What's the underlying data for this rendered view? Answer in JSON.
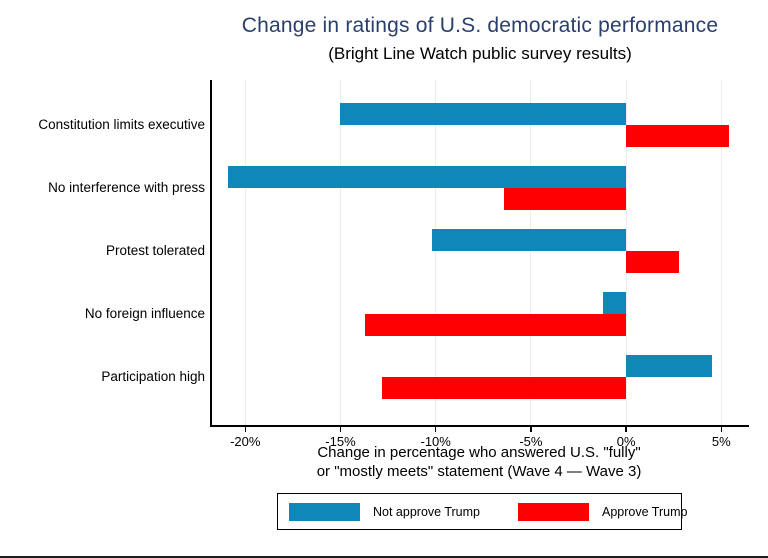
{
  "figure": {
    "title": "Change in ratings of U.S. democratic performance",
    "subtitle": "(Bright Line Watch public survey results)",
    "title_color": "#2a3f6b",
    "background_color": "#ffffff"
  },
  "chart_data": {
    "type": "bar",
    "orientation": "horizontal",
    "title": "Change in ratings of U.S. democratic performance",
    "subtitle": "(Bright Line Watch public survey results)",
    "categories": [
      "Constitution limits executive",
      "No interference with press",
      "Protest tolerated",
      "No foreign influence",
      "Participation high"
    ],
    "series": [
      {
        "name": "Not approve Trump",
        "color": "#0f87b9",
        "values": [
          -15.0,
          -20.9,
          -10.2,
          -1.2,
          4.5
        ]
      },
      {
        "name": "Approve Trump",
        "color": "#ff0000",
        "values": [
          5.4,
          -6.4,
          2.8,
          -13.7,
          -12.8
        ]
      }
    ],
    "xlabel_line1": "Change in percentage who answered U.S. \"fully\"",
    "xlabel_line2": "or \"mostly meets\" statement (Wave 4 — Wave 3)",
    "xticks": [
      -20,
      -15,
      -10,
      -5,
      0,
      5
    ],
    "xtick_labels": [
      "-20%",
      "-15%",
      "-10%",
      "-5%",
      "0%",
      "5%"
    ],
    "xlim": [
      -21.8,
      6.4
    ],
    "grid": true,
    "gridline_color": "#e6eef4",
    "axis_color": "#000000",
    "legend_position": "bottom",
    "legend_border_color": "#000000"
  }
}
